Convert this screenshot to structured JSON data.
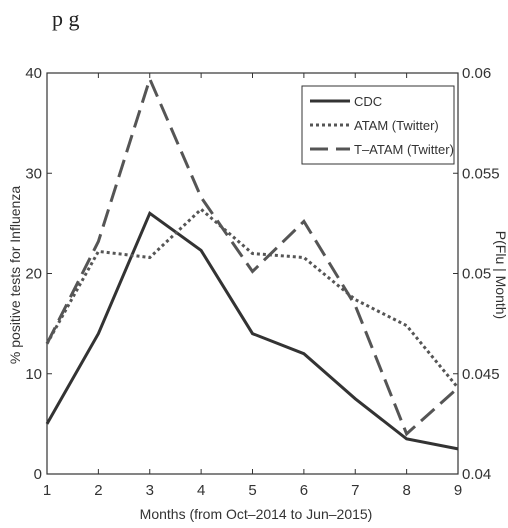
{
  "top_fragment": "p    g",
  "chart_data": {
    "type": "line",
    "x": [
      1,
      2,
      3,
      4,
      5,
      6,
      7,
      8,
      9
    ],
    "xlabel": "Months (from Oct–2014 to Jun–2015)",
    "ylabel_left": "% positive tests for Influenza",
    "ylabel_right": "P(Flu | Month)",
    "xlim": [
      1,
      9
    ],
    "ylim_left": [
      0,
      40
    ],
    "ylim_right": [
      0.04,
      0.06
    ],
    "xticks": [
      "1",
      "2",
      "3",
      "4",
      "5",
      "6",
      "7",
      "8",
      "9"
    ],
    "yticks_left": [
      "0",
      "10",
      "20",
      "30",
      "40"
    ],
    "yticks_right": [
      "0.04",
      "0.045",
      "0.05",
      "0.055",
      "0.06"
    ],
    "grid": false,
    "legend_position": "top-right",
    "series": [
      {
        "name": "CDC",
        "axis": "left",
        "style": "solid",
        "color": "#333333",
        "values": [
          5,
          14,
          26,
          22.3,
          14,
          12,
          7.5,
          3.5,
          2.5
        ]
      },
      {
        "name": "ATAM (Twitter)",
        "axis": "right",
        "style": "dotted",
        "color": "#555555",
        "values": [
          0.0465,
          0.0511,
          0.0508,
          0.0532,
          0.051,
          0.0508,
          0.0487,
          0.0474,
          0.0443
        ]
      },
      {
        "name": "T–ATAM (Twitter)",
        "axis": "right",
        "style": "dashed",
        "color": "#555555",
        "values": [
          0.0465,
          0.0516,
          0.0597,
          0.0538,
          0.0501,
          0.0526,
          0.0484,
          0.042,
          0.0443
        ]
      }
    ]
  }
}
